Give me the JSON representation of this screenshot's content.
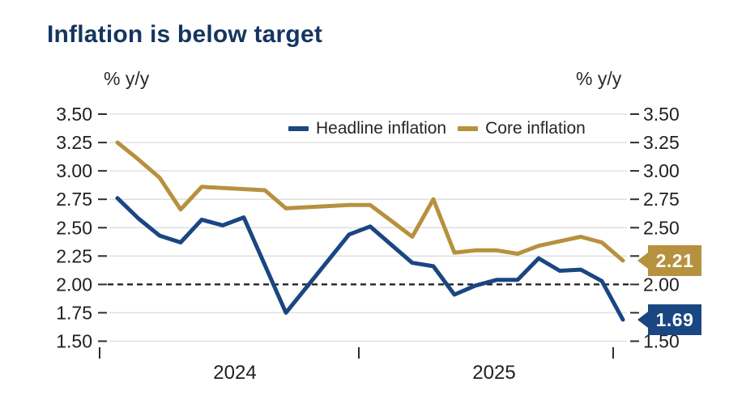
{
  "title": "Inflation is below target",
  "y_axis": {
    "unit_left": "% y/y",
    "unit_right": "% y/y",
    "left_tick_labels": [
      "3.50",
      "3.25",
      "3.00",
      "2.75",
      "2.50",
      "2.25",
      "2.00",
      "1.75",
      "1.50"
    ],
    "right_tick_labels": [
      "3.50",
      "3.25",
      "3.00",
      "2.75",
      "2.50",
      "2.00",
      "1.50"
    ]
  },
  "x_axis": {
    "year_labels": [
      "2024",
      "2025"
    ]
  },
  "legend": {
    "items": [
      {
        "label": "Headline inflation",
        "color": "#1A4682"
      },
      {
        "label": "Core inflation",
        "color": "#B6913E"
      }
    ]
  },
  "badges": {
    "core": {
      "text": "2.21",
      "color": "#B6913E"
    },
    "headline": {
      "text": "1.69",
      "color": "#1A4682"
    }
  },
  "colors": {
    "navy": "#1A4682",
    "gold": "#B6913E",
    "grid": "#DCDCDC",
    "target_line": "#1A1A1A",
    "axis_text": "#1F1F1F",
    "title_text": "#14355F"
  },
  "chart_data": {
    "type": "line",
    "title": "Inflation is below target",
    "ylabel": "% y/y",
    "ylim": [
      1.5,
      3.5
    ],
    "yticks": [
      3.5,
      3.25,
      3.0,
      2.75,
      2.5,
      2.25,
      2.0,
      1.75,
      1.5
    ],
    "target_line": 2.0,
    "grid": "horizontal",
    "legend_position": "top-center",
    "x_year_tick_labels": [
      "2024",
      "2025"
    ],
    "series": [
      {
        "name": "Headline inflation",
        "color": "#1A4682",
        "end_label": "1.69",
        "values": [
          2.76,
          2.58,
          2.43,
          2.37,
          2.57,
          2.52,
          2.59,
          2.17,
          1.75,
          1.98,
          2.21,
          2.44,
          2.51,
          2.35,
          2.19,
          2.16,
          1.91,
          1.99,
          2.04,
          2.04,
          2.23,
          2.12,
          2.13,
          2.03,
          1.69
        ]
      },
      {
        "name": "Core inflation",
        "color": "#B6913E",
        "end_label": "2.21",
        "values": [
          3.25,
          3.1,
          2.94,
          2.66,
          2.86,
          2.85,
          2.84,
          2.83,
          2.67,
          2.68,
          2.69,
          2.7,
          2.7,
          2.56,
          2.42,
          2.75,
          2.28,
          2.3,
          2.3,
          2.27,
          2.34,
          2.38,
          2.42,
          2.37,
          2.21
        ]
      }
    ]
  }
}
